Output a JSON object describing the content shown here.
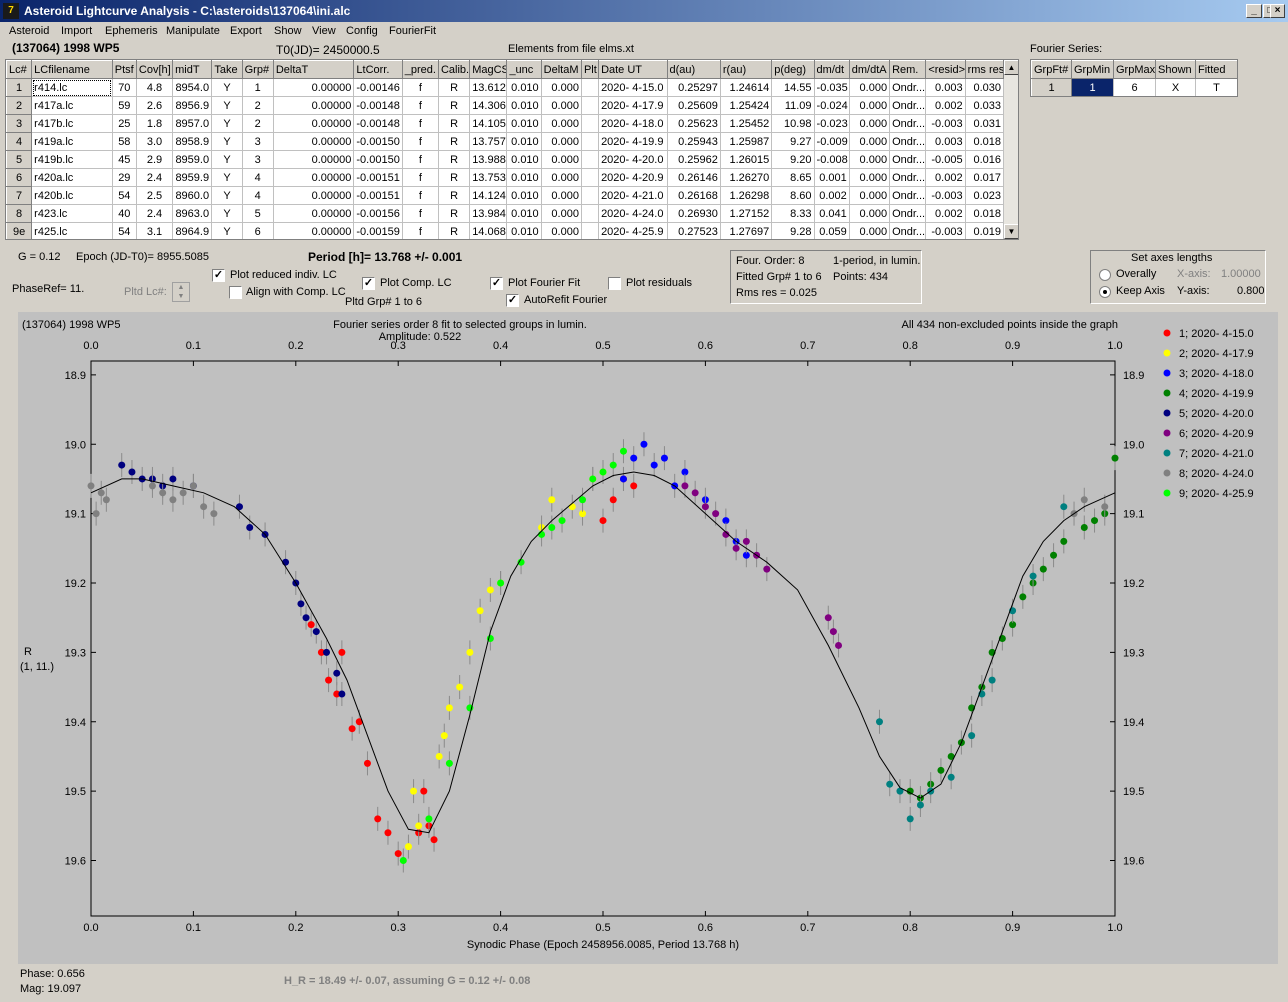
{
  "window": {
    "title": "Asteroid Lightcurve Analysis - C:\\asteroids\\137064\\ini.alc",
    "icon": "app-icon"
  },
  "menu": [
    "Asteroid",
    "Import",
    "Ephemeris",
    "Manipulate",
    "Export",
    "Show",
    "View",
    "Config",
    "FourierFit"
  ],
  "header": {
    "asteroid": "(137064) 1998 WP5",
    "t0": "T0(JD)= 2450000.5",
    "elements": "Elements from file elms.xt"
  },
  "lc_table": {
    "columns": [
      "Lc#",
      "LCfilename",
      "Ptsf",
      "Cov[h]",
      "midT",
      "Take",
      "Grp#",
      "DeltaT",
      "LtCorr.",
      "_pred.",
      "Calib.",
      "MagCS",
      "_unc",
      "DeltaM",
      "Plt",
      "Date UT",
      "d(au)",
      "r(au)",
      "p(deg)",
      "dm/dt",
      "dm/dtA",
      "Rem.",
      "<resid>",
      "rms res"
    ],
    "rows": [
      [
        "1",
        "r414.lc",
        "70",
        "4.8",
        "8954.0",
        "Y",
        "1",
        "0.00000",
        "-0.00146",
        "f",
        "R",
        "13.612",
        "0.010",
        "0.000",
        "",
        "2020- 4-15.0",
        "0.25297",
        "1.24614",
        "14.55",
        "-0.035",
        "0.000",
        "Ondr...",
        "0.003",
        "0.030"
      ],
      [
        "2",
        "r417a.lc",
        "59",
        "2.6",
        "8956.9",
        "Y",
        "2",
        "0.00000",
        "-0.00148",
        "f",
        "R",
        "14.306",
        "0.010",
        "0.000",
        "",
        "2020- 4-17.9",
        "0.25609",
        "1.25424",
        "11.09",
        "-0.024",
        "0.000",
        "Ondr...",
        "0.002",
        "0.033"
      ],
      [
        "3",
        "r417b.lc",
        "25",
        "1.8",
        "8957.0",
        "Y",
        "2",
        "0.00000",
        "-0.00148",
        "f",
        "R",
        "14.105",
        "0.010",
        "0.000",
        "",
        "2020- 4-18.0",
        "0.25623",
        "1.25452",
        "10.98",
        "-0.023",
        "0.000",
        "Ondr...",
        "-0.003",
        "0.031"
      ],
      [
        "4",
        "r419a.lc",
        "58",
        "3.0",
        "8958.9",
        "Y",
        "3",
        "0.00000",
        "-0.00150",
        "f",
        "R",
        "13.757",
        "0.010",
        "0.000",
        "",
        "2020- 4-19.9",
        "0.25943",
        "1.25987",
        "9.27",
        "-0.009",
        "0.000",
        "Ondr...",
        "0.003",
        "0.018"
      ],
      [
        "5",
        "r419b.lc",
        "45",
        "2.9",
        "8959.0",
        "Y",
        "3",
        "0.00000",
        "-0.00150",
        "f",
        "R",
        "13.988",
        "0.010",
        "0.000",
        "",
        "2020- 4-20.0",
        "0.25962",
        "1.26015",
        "9.20",
        "-0.008",
        "0.000",
        "Ondr...",
        "-0.005",
        "0.016"
      ],
      [
        "6",
        "r420a.lc",
        "29",
        "2.4",
        "8959.9",
        "Y",
        "4",
        "0.00000",
        "-0.00151",
        "f",
        "R",
        "13.753",
        "0.010",
        "0.000",
        "",
        "2020- 4-20.9",
        "0.26146",
        "1.26270",
        "8.65",
        "0.001",
        "0.000",
        "Ondr...",
        "0.002",
        "0.017"
      ],
      [
        "7",
        "r420b.lc",
        "54",
        "2.5",
        "8960.0",
        "Y",
        "4",
        "0.00000",
        "-0.00151",
        "f",
        "R",
        "14.124",
        "0.010",
        "0.000",
        "",
        "2020- 4-21.0",
        "0.26168",
        "1.26298",
        "8.60",
        "0.002",
        "0.000",
        "Ondr...",
        "-0.003",
        "0.023"
      ],
      [
        "8",
        "r423.lc",
        "40",
        "2.4",
        "8963.0",
        "Y",
        "5",
        "0.00000",
        "-0.00156",
        "f",
        "R",
        "13.984",
        "0.010",
        "0.000",
        "",
        "2020- 4-24.0",
        "0.26930",
        "1.27152",
        "8.33",
        "0.041",
        "0.000",
        "Ondr...",
        "0.002",
        "0.018"
      ],
      [
        "9e",
        "r425.lc",
        "54",
        "3.1",
        "8964.9",
        "Y",
        "6",
        "0.00000",
        "-0.00159",
        "f",
        "R",
        "14.068",
        "0.010",
        "0.000",
        "",
        "2020- 4-25.9",
        "0.27523",
        "1.27697",
        "9.28",
        "0.059",
        "0.000",
        "Ondr...",
        "-0.003",
        "0.019"
      ]
    ]
  },
  "fourier_series": {
    "label": "Fourier Series:",
    "columns": [
      "GrpFt#",
      "GrpMin",
      "GrpMax",
      "Shown",
      "Fitted"
    ],
    "row": [
      "1",
      "1",
      "6",
      "X",
      "T"
    ]
  },
  "controls": {
    "g": "G = 0.12",
    "epoch": "Epoch (JD-T0)= 8955.5085",
    "period": "Period [h]= 13.768 +/- 0.001",
    "phaseref": "PhaseRef= 11.",
    "pltd_lc": "Pltd Lc#:",
    "plot_reduced": "Plot reduced indiv. LC",
    "align_comp": "Align with Comp. LC",
    "plot_comp": "Plot Comp. LC",
    "pltd_grp": "Pltd Grp#  1   to    6",
    "plot_fourier": "Plot Fourier Fit",
    "autorefit": "AutoRefit Fourier",
    "plot_residuals": "Plot residuals",
    "checked": {
      "plot_reduced": true,
      "align_comp": false,
      "plot_comp": true,
      "plot_fourier": true,
      "autorefit": true,
      "plot_residuals": false
    }
  },
  "fit_info": {
    "order": "Four. Order:  8",
    "period_note": "1-period, in lumin.",
    "fitted": "Fitted Grp# 1 to 6",
    "points": "Points: 434",
    "rms": "Rms res      = 0.025"
  },
  "axes_box": {
    "title": "Set axes lengths",
    "overally": "Overally",
    "keep_axis": "Keep Axis",
    "x_label": "X-axis:",
    "x_value": "1.00000",
    "y_label": "Y-axis:",
    "y_value": "0.800",
    "selected": "keep_axis"
  },
  "plot": {
    "object": "(137064) 1998 WP5",
    "subtitle": "Fourier series order 8 fit to selected groups in lumin.",
    "amplitude": "Amplitude: 0.522",
    "note": "All 434 non-excluded points inside the graph",
    "xlabel": "Synodic Phase (Epoch 2458956.0085, Period 13.768 h)",
    "ylabel_1": "R",
    "ylabel_2": "(1, 11.)"
  },
  "chart_data": {
    "type": "scatter",
    "xlim": [
      0,
      1
    ],
    "ylim": [
      19.68,
      18.88
    ],
    "x_ticks": [
      "0.0",
      "0.1",
      "0.2",
      "0.3",
      "0.4",
      "0.5",
      "0.6",
      "0.7",
      "0.8",
      "0.9",
      "1.0"
    ],
    "y_ticks": [
      "18.9",
      "19.0",
      "19.1",
      "19.2",
      "19.3",
      "19.4",
      "19.5",
      "19.6"
    ],
    "fit_curve": {
      "x": [
        0.0,
        0.03,
        0.05,
        0.08,
        0.11,
        0.14,
        0.17,
        0.2,
        0.23,
        0.25,
        0.27,
        0.29,
        0.31,
        0.33,
        0.35,
        0.37,
        0.39,
        0.41,
        0.43,
        0.45,
        0.47,
        0.49,
        0.51,
        0.53,
        0.55,
        0.57,
        0.6,
        0.63,
        0.66,
        0.69,
        0.72,
        0.75,
        0.77,
        0.79,
        0.81,
        0.83,
        0.85,
        0.87,
        0.89,
        0.91,
        0.93,
        0.95,
        0.97,
        1.0
      ],
      "y": [
        19.07,
        19.05,
        19.05,
        19.06,
        19.07,
        19.09,
        19.13,
        19.2,
        19.28,
        19.34,
        19.42,
        19.5,
        19.555,
        19.56,
        19.5,
        19.39,
        19.27,
        19.19,
        19.14,
        19.11,
        19.085,
        19.06,
        19.045,
        19.04,
        19.045,
        19.06,
        19.1,
        19.14,
        19.17,
        19.21,
        19.29,
        19.38,
        19.45,
        19.495,
        19.51,
        19.49,
        19.43,
        19.35,
        19.27,
        19.19,
        19.14,
        19.11,
        19.09,
        19.07
      ]
    },
    "series": [
      {
        "name": "1; 2020- 4-15.0",
        "color": "#ff0000",
        "x": [
          0.215,
          0.225,
          0.232,
          0.24,
          0.245,
          0.255,
          0.262,
          0.27,
          0.28,
          0.29,
          0.3,
          0.32,
          0.325,
          0.33,
          0.335,
          0.5,
          0.51,
          0.52,
          0.53
        ],
        "y": [
          19.26,
          19.3,
          19.34,
          19.36,
          19.3,
          19.41,
          19.4,
          19.46,
          19.54,
          19.56,
          19.59,
          19.56,
          19.5,
          19.55,
          19.57,
          19.11,
          19.08,
          19.05,
          19.06
        ]
      },
      {
        "name": "2; 2020- 4-17.9",
        "color": "#ffff00",
        "x": [
          0.31,
          0.315,
          0.32,
          0.34,
          0.345,
          0.35,
          0.36,
          0.37,
          0.38,
          0.39,
          0.4,
          0.44,
          0.45,
          0.47,
          0.48,
          0.49,
          0.5
        ],
        "y": [
          19.58,
          19.5,
          19.55,
          19.45,
          19.42,
          19.38,
          19.35,
          19.3,
          19.24,
          19.21,
          19.2,
          19.12,
          19.08,
          19.09,
          19.1,
          19.05,
          19.04
        ]
      },
      {
        "name": "3; 2020- 4-18.0",
        "color": "#0000ff",
        "x": [
          0.52,
          0.53,
          0.54,
          0.55,
          0.56,
          0.57,
          0.58,
          0.6,
          0.62,
          0.63,
          0.64
        ],
        "y": [
          19.05,
          19.02,
          19.0,
          19.03,
          19.02,
          19.06,
          19.04,
          19.08,
          19.11,
          19.14,
          19.16
        ]
      },
      {
        "name": "4; 2020- 4-19.9",
        "color": "#008000",
        "x": [
          0.8,
          0.81,
          0.82,
          0.83,
          0.84,
          0.85,
          0.86,
          0.87,
          0.88,
          0.89,
          0.9,
          0.91,
          0.92,
          0.93,
          0.94,
          0.95,
          0.97,
          0.98,
          0.99,
          1.0
        ],
        "y": [
          19.5,
          19.51,
          19.49,
          19.47,
          19.45,
          19.43,
          19.38,
          19.35,
          19.3,
          19.28,
          19.26,
          19.22,
          19.2,
          19.18,
          19.16,
          19.14,
          19.12,
          19.11,
          19.1,
          19.02
        ]
      },
      {
        "name": "5; 2020- 4-20.0",
        "color": "#00007f",
        "x": [
          0.03,
          0.04,
          0.05,
          0.06,
          0.07,
          0.08,
          0.1,
          0.145,
          0.155,
          0.17,
          0.19,
          0.2,
          0.205,
          0.21,
          0.22,
          0.23,
          0.24,
          0.245
        ],
        "y": [
          19.03,
          19.04,
          19.05,
          19.05,
          19.06,
          19.05,
          19.06,
          19.09,
          19.12,
          19.13,
          19.17,
          19.2,
          19.23,
          19.25,
          19.27,
          19.3,
          19.33,
          19.36
        ]
      },
      {
        "name": "6; 2020- 4-20.9",
        "color": "#800080",
        "x": [
          0.58,
          0.59,
          0.6,
          0.61,
          0.62,
          0.63,
          0.64,
          0.65,
          0.66,
          0.72,
          0.725,
          0.73
        ],
        "y": [
          19.06,
          19.07,
          19.09,
          19.1,
          19.13,
          19.15,
          19.14,
          19.16,
          19.18,
          19.25,
          19.27,
          19.29
        ]
      },
      {
        "name": "7; 2020- 4-21.0",
        "color": "#008080",
        "x": [
          0.77,
          0.78,
          0.79,
          0.8,
          0.81,
          0.82,
          0.84,
          0.86,
          0.87,
          0.88,
          0.9,
          0.92,
          0.95
        ],
        "y": [
          19.4,
          19.49,
          19.5,
          19.54,
          19.52,
          19.5,
          19.48,
          19.42,
          19.36,
          19.34,
          19.24,
          19.19,
          19.09
        ]
      },
      {
        "name": "8; 2020- 4-24.0",
        "color": "#808080",
        "x": [
          0.0,
          0.005,
          0.01,
          0.015,
          0.06,
          0.07,
          0.08,
          0.09,
          0.1,
          0.11,
          0.12,
          0.96,
          0.97,
          0.99
        ],
        "y": [
          19.06,
          19.1,
          19.07,
          19.08,
          19.06,
          19.07,
          19.08,
          19.07,
          19.06,
          19.09,
          19.1,
          19.1,
          19.08,
          19.09
        ]
      },
      {
        "name": "9; 2020- 4-25.9",
        "color": "#00ff00",
        "x": [
          0.305,
          0.33,
          0.35,
          0.37,
          0.39,
          0.4,
          0.42,
          0.44,
          0.45,
          0.46,
          0.48,
          0.49,
          0.5,
          0.51,
          0.52
        ],
        "y": [
          19.6,
          19.54,
          19.46,
          19.38,
          19.28,
          19.2,
          19.17,
          19.13,
          19.12,
          19.11,
          19.08,
          19.05,
          19.04,
          19.03,
          19.01
        ]
      }
    ]
  },
  "status": {
    "phase": "Phase:  0.656",
    "mag": "Mag:    19.097",
    "hr": "H_R = 18.49 +/- 0.07, assuming G = 0.12 +/- 0.08"
  }
}
